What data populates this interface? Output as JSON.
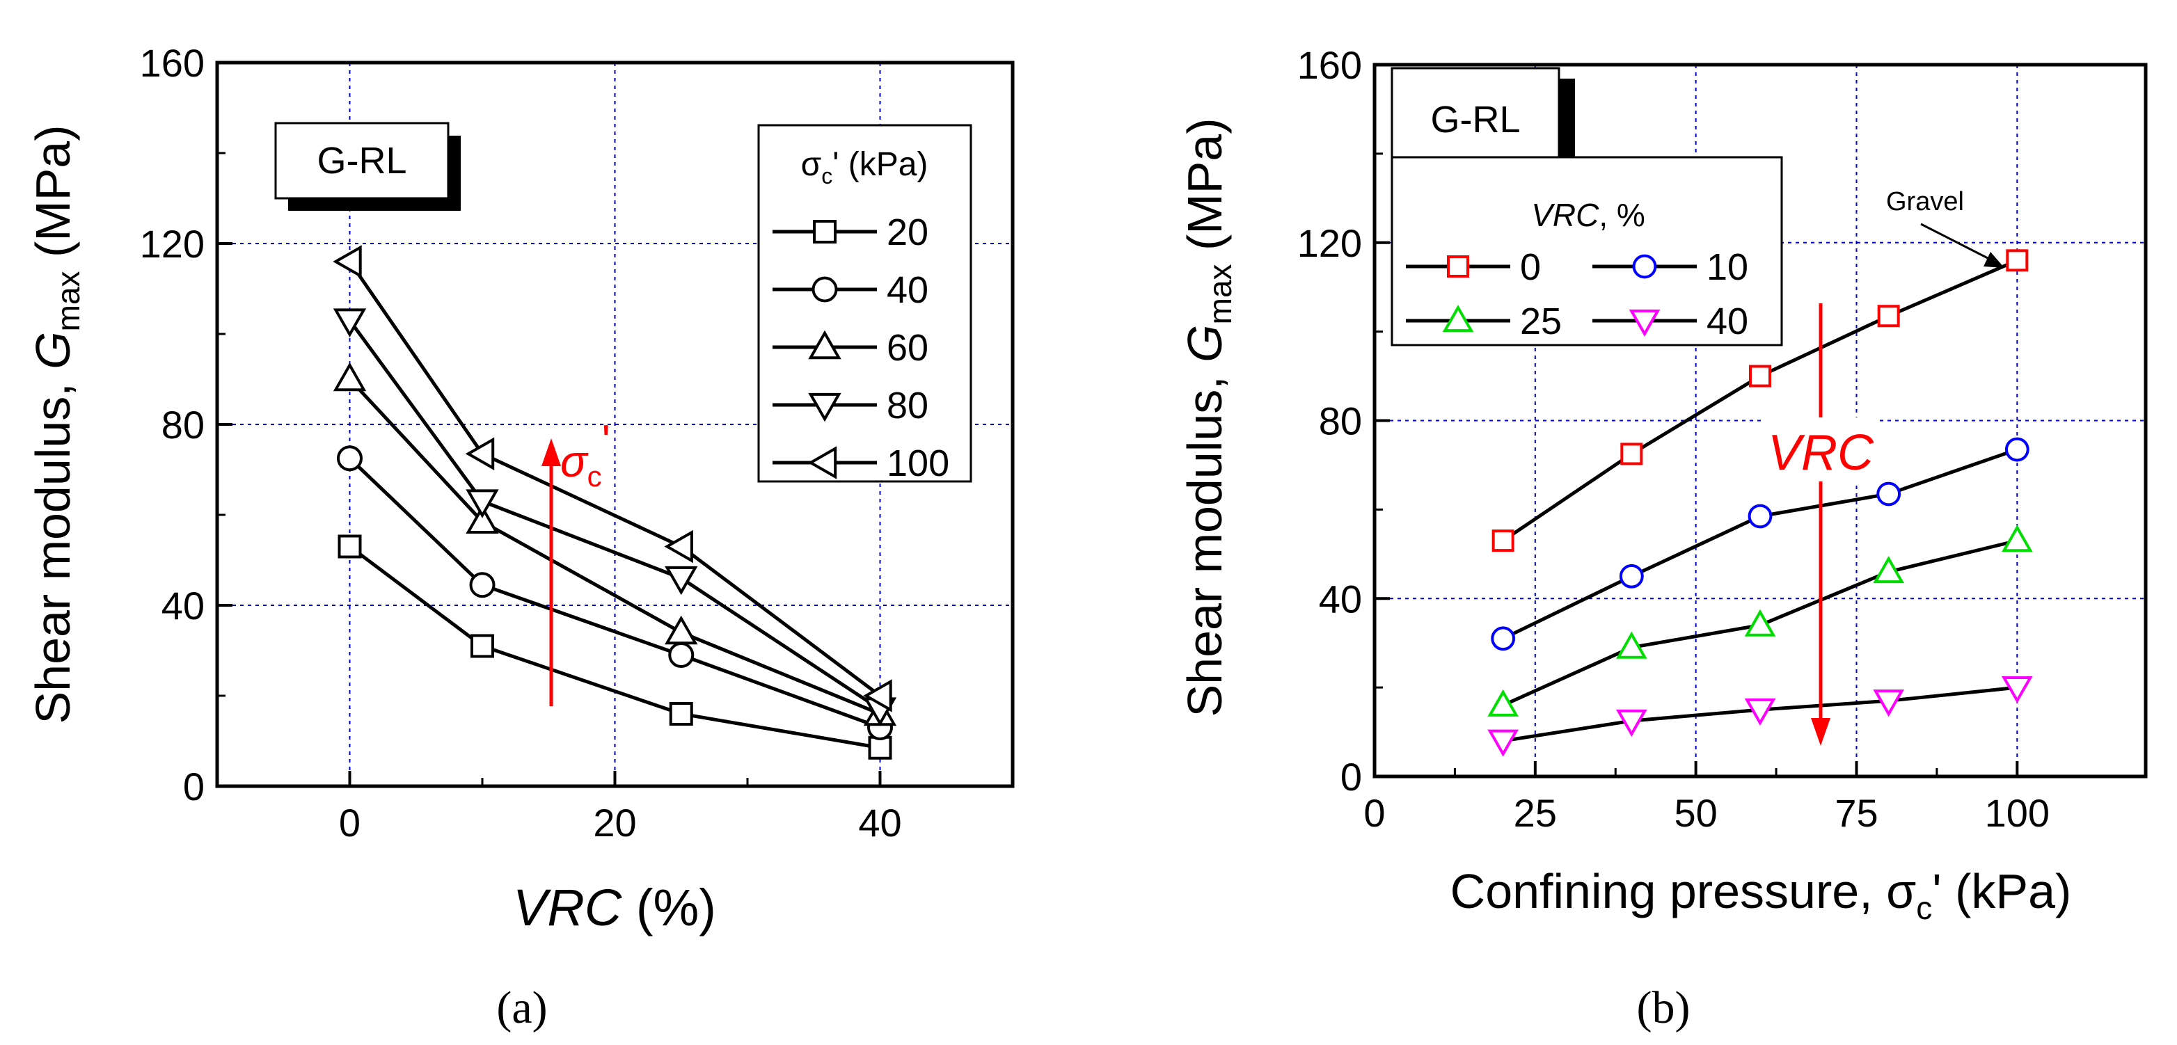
{
  "colors": {
    "arrow": "#ff0000",
    "grid": "#0000cc",
    "axis": "#000000"
  },
  "chart_data": [
    {
      "panel_label": "(a)",
      "type": "line",
      "xlabel_italic": "VRC",
      "xlabel_rest": " (%)",
      "ylabel_main": "Shear modulus, ",
      "ylabel_symbol": "G",
      "ylabel_sub": "max",
      "ylabel_unit": " (MPa)",
      "xlim": [
        -10,
        50
      ],
      "ylim": [
        0,
        160
      ],
      "xticks": [
        "0",
        "20",
        "40"
      ],
      "yticks": [
        "0",
        "40",
        "80",
        "120",
        "160"
      ],
      "grid": true,
      "tag": "G-RL",
      "legend_title_symbol": "σ",
      "legend_title_sub": "c",
      "legend_title_rest": "' (kPa)",
      "legend_placement": "top-right",
      "annotation_symbol": "σ",
      "annotation_sub": "c",
      "annotation_prime": "'",
      "x": [
        0,
        10,
        25,
        40
      ],
      "series": [
        {
          "name": "20",
          "marker": "square",
          "values": [
            53,
            31,
            16,
            8.5
          ]
        },
        {
          "name": "40",
          "marker": "circle",
          "values": [
            72.5,
            44.5,
            29,
            13
          ]
        },
        {
          "name": "60",
          "marker": "triangle-up",
          "values": [
            90,
            58.5,
            34,
            16
          ]
        },
        {
          "name": "80",
          "marker": "triangle-down",
          "values": [
            103,
            63,
            46,
            17
          ]
        },
        {
          "name": "100",
          "marker": "triangle-left",
          "values": [
            116,
            73.5,
            53,
            20
          ]
        }
      ]
    },
    {
      "panel_label": "(b)",
      "type": "line",
      "xlabel": "Confining pressure, ",
      "xlabel_symbol": "σ",
      "xlabel_sub": "c",
      "xlabel_rest": "' (kPa)",
      "ylabel_main": "Shear modulus, ",
      "ylabel_symbol": "G",
      "ylabel_sub": "max",
      "ylabel_unit": " (MPa)",
      "xlim": [
        0,
        120
      ],
      "ylim": [
        0,
        160
      ],
      "xticks": [
        "0",
        "25",
        "50",
        "75",
        "100"
      ],
      "yticks": [
        "0",
        "40",
        "80",
        "120",
        "160"
      ],
      "grid": true,
      "tag": "G-RL",
      "legend_title_italic": "VRC",
      "legend_title_rest": ", %",
      "legend_placement": "top-left",
      "annotation_text": "VRC",
      "callout_text": "Gravel",
      "x": [
        20,
        40,
        60,
        80,
        100
      ],
      "series": [
        {
          "name": "0",
          "marker": "square",
          "color": "#ff0000",
          "values": [
            53,
            72.5,
            90,
            103.5,
            116
          ]
        },
        {
          "name": "10",
          "marker": "circle",
          "color": "#0000ff",
          "values": [
            31,
            45,
            58.5,
            63.5,
            73.5
          ]
        },
        {
          "name": "25",
          "marker": "triangle-up",
          "color": "#00dd00",
          "values": [
            16,
            29,
            34,
            46,
            53
          ]
        },
        {
          "name": "40",
          "marker": "triangle-down",
          "color": "#ff00ff",
          "values": [
            8,
            12.5,
            15,
            17,
            20
          ]
        }
      ]
    }
  ]
}
